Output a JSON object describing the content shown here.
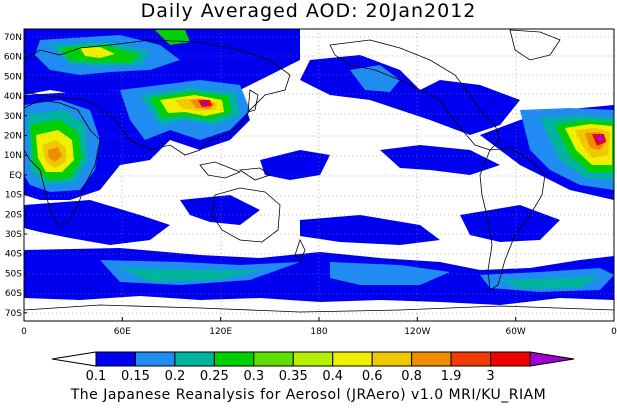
{
  "title": "Daily Averaged AOD: 20Jan2012",
  "footer": "The Japanese Reanalysis for Aerosol (JRAero) v1.0 MRI/KU_RIAM",
  "lat_ticks": [
    "70N",
    "60N",
    "50N",
    "40N",
    "30N",
    "20N",
    "10N",
    "EQ",
    "10S",
    "20S",
    "30S",
    "40S",
    "50S",
    "60S",
    "70S"
  ],
  "lon_ticks": [
    "0",
    "60E",
    "120E",
    "180",
    "120W",
    "60W",
    "0"
  ],
  "colorbar": {
    "labels": [
      "0.1",
      "0.15",
      "0.2",
      "0.25",
      "0.3",
      "0.35",
      "0.4",
      "0.6",
      "0.8",
      "1.9",
      "3"
    ],
    "colors": [
      "#0000f0",
      "#1e8cf0",
      "#00b4a0",
      "#00d000",
      "#60e000",
      "#b4f000",
      "#f0f000",
      "#f0c800",
      "#f08c00",
      "#f03c00",
      "#f00000",
      "#a000d2"
    ]
  }
}
